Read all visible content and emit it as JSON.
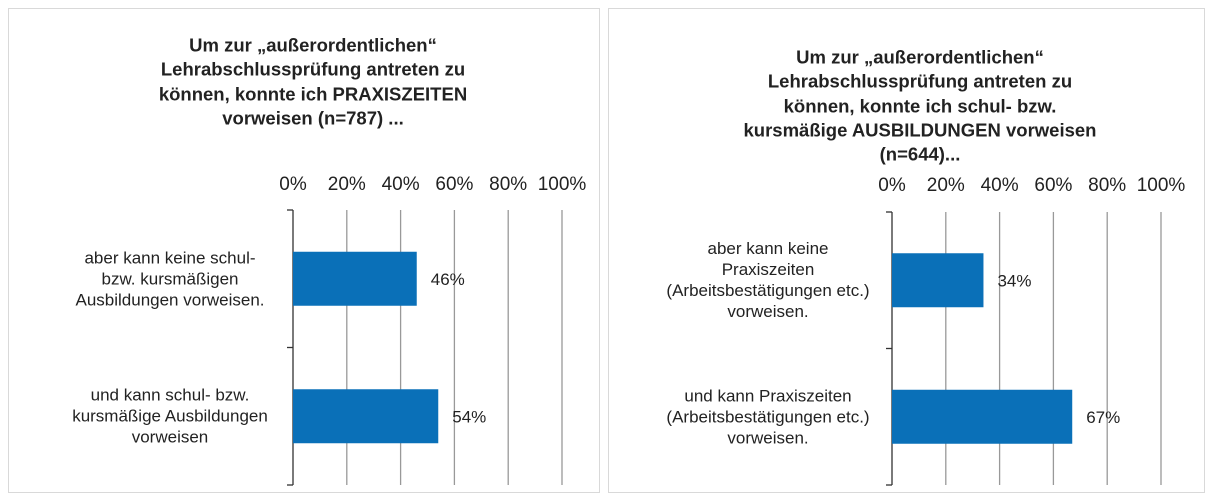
{
  "chart_data": [
    {
      "type": "bar",
      "orientation": "horizontal",
      "title": "Um zur „außerordentlichen“\nLehrabschlussprüfung antreten zu\nkönnen, konnte ich PRAXISZEITEN\nvorweisen (n=787) ...",
      "categories": [
        "aber kann keine schul-\nbzw. kursmäßigen\nAusbildungen vorweisen.",
        "und kann schul- bzw.\nkursmäßige Ausbildungen\nvorweisen"
      ],
      "values": [
        46,
        54
      ],
      "value_labels": [
        "46%",
        "54%"
      ],
      "color": "#0a70b8",
      "xlim": [
        0,
        100
      ],
      "xticks": [
        {
          "value": 0,
          "label": "0%"
        },
        {
          "value": 20,
          "label": "20%"
        },
        {
          "value": 40,
          "label": "40%"
        },
        {
          "value": 60,
          "label": "60%"
        },
        {
          "value": 80,
          "label": "80%"
        },
        {
          "value": 100,
          "label": "100%"
        }
      ],
      "grid": true
    },
    {
      "type": "bar",
      "orientation": "horizontal",
      "title": "Um zur „außerordentlichen“\nLehrabschlussprüfung antreten zu\nkönnen, konnte ich schul- bzw.\nkursmäßige AUSBILDUNGEN vorweisen\n(n=644)...",
      "categories": [
        "aber kann keine\nPraxiszeiten\n(Arbeitsbestätigungen etc.)\nvorweisen.",
        "und kann Praxiszeiten\n(Arbeitsbestätigungen etc.)\nvorweisen."
      ],
      "values": [
        34,
        67
      ],
      "value_labels": [
        "34%",
        "67%"
      ],
      "color": "#0a70b8",
      "xlim": [
        0,
        100
      ],
      "xticks": [
        {
          "value": 0,
          "label": "0%"
        },
        {
          "value": 20,
          "label": "20%"
        },
        {
          "value": 40,
          "label": "40%"
        },
        {
          "value": 60,
          "label": "60%"
        },
        {
          "value": 80,
          "label": "80%"
        },
        {
          "value": 100,
          "label": "100%"
        }
      ],
      "grid": true
    }
  ]
}
